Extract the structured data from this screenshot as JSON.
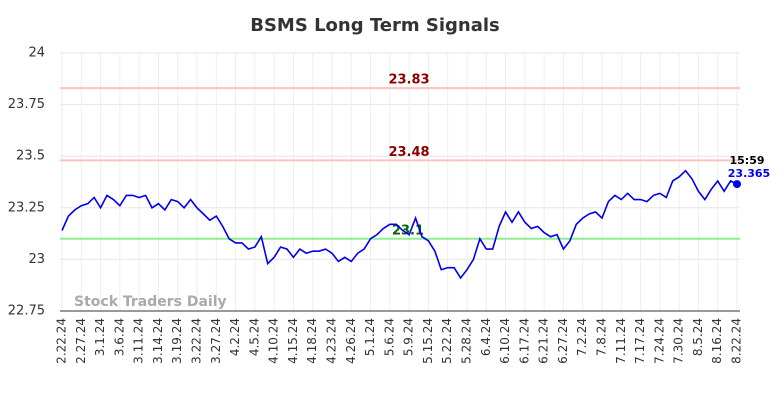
{
  "chart_data": {
    "type": "line",
    "title": "BSMS Long Term Signals",
    "watermark": "Stock Traders Daily",
    "categories": [
      "2.22.24",
      null,
      null,
      "2.27.24",
      null,
      null,
      "3.1.24",
      null,
      null,
      "3.6.24",
      null,
      null,
      "3.11.24",
      null,
      null,
      "3.14.24",
      null,
      null,
      "3.19.24",
      null,
      null,
      "3.22.24",
      null,
      null,
      "3.27.24",
      null,
      null,
      "4.2.24",
      null,
      null,
      "4.5.24",
      null,
      null,
      "4.10.24",
      null,
      null,
      "4.15.24",
      null,
      null,
      "4.18.24",
      null,
      null,
      "4.23.24",
      null,
      null,
      "4.26.24",
      null,
      null,
      "5.1.24",
      null,
      null,
      "5.6.24",
      null,
      null,
      "5.9.24",
      null,
      null,
      "5.15.24",
      null,
      null,
      "5.22.24",
      null,
      null,
      "5.28.24",
      null,
      null,
      "6.4.24",
      null,
      null,
      "6.10.24",
      null,
      null,
      "6.17.24",
      null,
      null,
      "6.21.24",
      null,
      null,
      "6.27.24",
      null,
      null,
      "7.2.24",
      null,
      null,
      "7.8.24",
      null,
      null,
      "7.11.24",
      null,
      null,
      "7.17.24",
      null,
      null,
      "7.24.24",
      null,
      null,
      "7.30.24",
      null,
      null,
      "8.5.24",
      null,
      null,
      "8.16.24",
      null,
      null,
      "8.22.24"
    ],
    "values": [
      23.14,
      23.21,
      23.24,
      23.26,
      23.27,
      23.3,
      23.25,
      23.31,
      23.29,
      23.26,
      23.31,
      23.31,
      23.3,
      23.31,
      23.25,
      23.27,
      23.24,
      23.29,
      23.28,
      23.25,
      23.29,
      23.25,
      23.22,
      23.19,
      23.21,
      23.16,
      23.1,
      23.08,
      23.08,
      23.05,
      23.06,
      23.11,
      22.98,
      23.01,
      23.06,
      23.05,
      23.01,
      23.05,
      23.03,
      23.04,
      23.04,
      23.05,
      23.03,
      22.99,
      23.01,
      22.99,
      23.03,
      23.05,
      23.1,
      23.12,
      23.15,
      23.17,
      23.17,
      23.14,
      23.12,
      23.2,
      23.11,
      23.09,
      23.04,
      22.95,
      22.96,
      22.96,
      22.91,
      22.95,
      23.0,
      23.1,
      23.05,
      23.05,
      23.16,
      23.23,
      23.18,
      23.23,
      23.18,
      23.15,
      23.16,
      23.13,
      23.11,
      23.12,
      23.05,
      23.09,
      23.17,
      23.2,
      23.22,
      23.23,
      23.2,
      23.28,
      23.31,
      23.29,
      23.32,
      23.29,
      23.29,
      23.28,
      23.31,
      23.32,
      23.3,
      23.38,
      23.4,
      23.43,
      23.39,
      23.33,
      23.29,
      23.34,
      23.38,
      23.33,
      23.38,
      23.365
    ],
    "color": "#0000ee",
    "last_time": "15:59",
    "hlines": [
      {
        "value": 23.83,
        "color": "#ffc0c0",
        "label_color": "#8b0000"
      },
      {
        "value": 23.48,
        "color": "#ffc0c0",
        "label_color": "#8b0000"
      },
      {
        "value": 23.1,
        "color": "#90ee90",
        "label_color": "#006400"
      }
    ],
    "ylim": [
      22.75,
      24
    ],
    "yticks": [
      22.75,
      23,
      23.25,
      23.5,
      23.75,
      24
    ],
    "grid": true
  }
}
